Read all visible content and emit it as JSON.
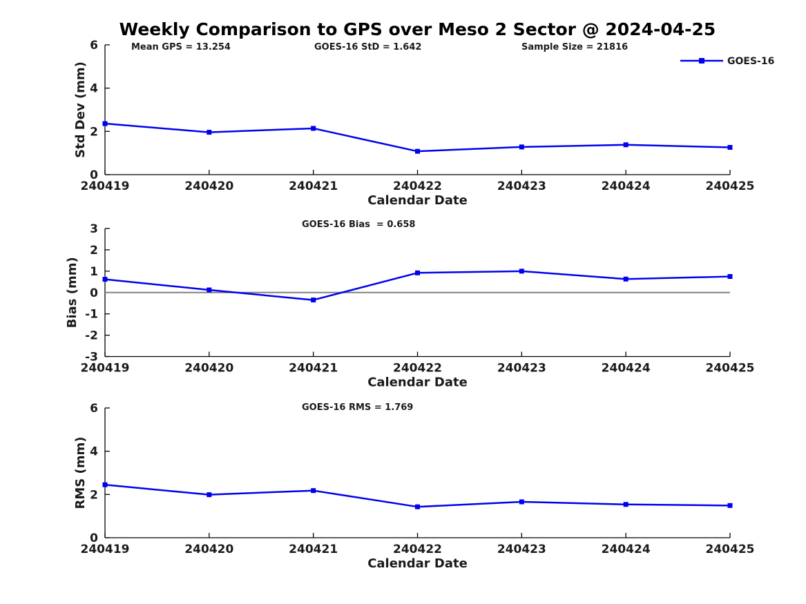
{
  "figure": {
    "title": "Weekly Comparison to GPS over Meso 2 Sector @ 2024-04-25",
    "series_color": "#0000EE",
    "text_color": "#1a1a1a",
    "axis_color": "#000000",
    "zero_line_color": "#808080"
  },
  "chart_data": [
    {
      "type": "line",
      "name": "std-dev-subplot",
      "categories": [
        "240419",
        "240420",
        "240421",
        "240422",
        "240423",
        "240424",
        "240425"
      ],
      "series": [
        {
          "name": "GOES-16",
          "color": "#0000EE",
          "marker": "square",
          "values": [
            2.36,
            1.96,
            2.14,
            1.08,
            1.28,
            1.38,
            1.26
          ]
        }
      ],
      "xlabel": "Calendar Date",
      "ylabel": "Std Dev (mm)",
      "ylim": [
        0,
        6
      ],
      "yticks": [
        0,
        2,
        4,
        6
      ],
      "grid": false,
      "zero_line": false,
      "legend": {
        "visible": true,
        "position": "top-right",
        "label": "GOES-16"
      },
      "annotations": [
        "Mean GPS = 13.254",
        "GOES-16 StD = 1.642",
        "Sample Size = 21816"
      ]
    },
    {
      "type": "line",
      "name": "bias-subplot",
      "categories": [
        "240419",
        "240420",
        "240421",
        "240422",
        "240423",
        "240424",
        "240425"
      ],
      "series": [
        {
          "name": "GOES-16",
          "color": "#0000EE",
          "marker": "square",
          "values": [
            0.62,
            0.12,
            -0.35,
            0.92,
            1.0,
            0.63,
            0.75
          ]
        }
      ],
      "xlabel": "Calendar Date",
      "ylabel": "Bias (mm)",
      "ylim": [
        -3,
        3
      ],
      "yticks": [
        -3,
        -2,
        -1,
        0,
        1,
        2,
        3
      ],
      "grid": false,
      "zero_line": true,
      "legend": {
        "visible": false
      },
      "annotations": [
        "GOES-16 Bias  = 0.658"
      ]
    },
    {
      "type": "line",
      "name": "rms-subplot",
      "categories": [
        "240419",
        "240420",
        "240421",
        "240422",
        "240423",
        "240424",
        "240425"
      ],
      "series": [
        {
          "name": "GOES-16",
          "color": "#0000EE",
          "marker": "square",
          "values": [
            2.45,
            1.99,
            2.18,
            1.43,
            1.66,
            1.54,
            1.49
          ]
        }
      ],
      "xlabel": "Calendar Date",
      "ylabel": "RMS (mm)",
      "ylim": [
        0,
        6
      ],
      "yticks": [
        0,
        2,
        4,
        6
      ],
      "grid": false,
      "zero_line": false,
      "legend": {
        "visible": false
      },
      "annotations": [
        "GOES-16 RMS = 1.769"
      ]
    }
  ]
}
